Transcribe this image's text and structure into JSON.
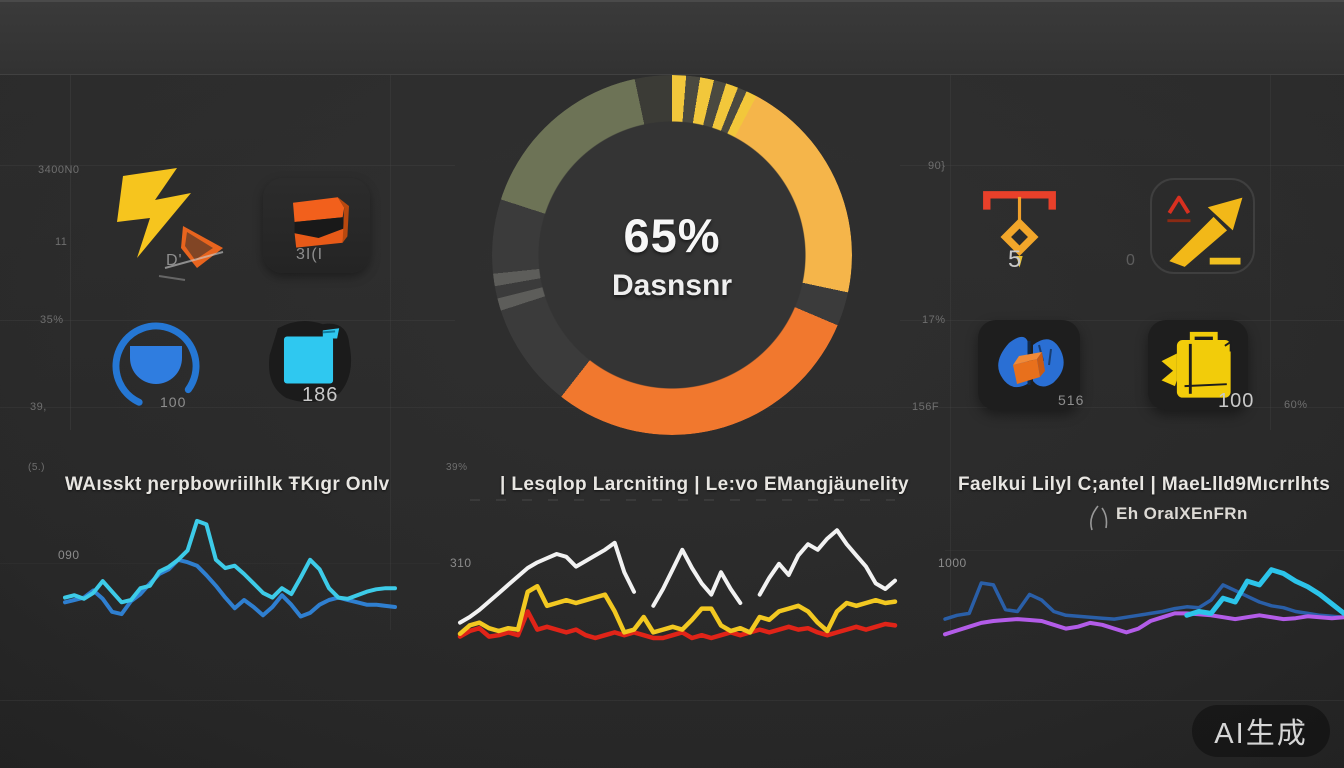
{
  "watermark": {
    "label": "AI生成"
  },
  "donut": {
    "percent": "65%",
    "label": "Dasnsnr",
    "start_deg": -72,
    "segments": [
      [
        "#6d7356",
        0,
        60
      ],
      [
        "#3b3b36",
        60,
        72
      ],
      [
        "#f2c73b",
        72,
        76.5
      ],
      [
        "#4a4940",
        76.5,
        81
      ],
      [
        "#f2c73b",
        81,
        85.5
      ],
      [
        "#4a4940",
        85.5,
        89.5
      ],
      [
        "#f2c73b",
        89.5,
        93.5
      ],
      [
        "#4a4940",
        93.5,
        96.5
      ],
      [
        "#f2c73b",
        96.5,
        100
      ],
      [
        "#f5b54a",
        100,
        174
      ],
      [
        "#3b3b3b",
        174,
        185
      ],
      [
        "#f1782e",
        185,
        290
      ],
      [
        "#3b3b3b",
        290,
        324
      ],
      [
        "#5d5d5a",
        324,
        328
      ],
      [
        "#3b3b3b",
        328,
        332
      ],
      [
        "#5d5d5a",
        332,
        336
      ],
      [
        "#3b3b3b",
        336,
        360
      ]
    ]
  },
  "axis": {
    "left": [
      "3400N0",
      "11",
      "35%",
      "39,"
    ],
    "right": [
      "90}",
      "17%",
      "156F",
      "60%"
    ]
  },
  "tiles": {
    "left": [
      {
        "icon": "lightning-icon",
        "caption": "D'"
      },
      {
        "icon": "layers-box-icon",
        "caption": "3I(I"
      },
      {
        "icon": "arc-bowl-icon",
        "caption": "100"
      },
      {
        "icon": "cyan-cube-icon",
        "caption": "186"
      }
    ],
    "right": [
      {
        "icon": "pen-tool-icon",
        "caption": "5"
      },
      {
        "icon": "trend-arrow-icon",
        "caption": "0"
      },
      {
        "icon": "brain-cube-icon",
        "caption": "516"
      },
      {
        "icon": "yellow-bag-icon",
        "caption": "100"
      }
    ]
  },
  "panels": [
    {
      "title": "WAısskt ɲerpbowriilhlk ŦKıgr Onlv",
      "corner": "(5.)",
      "axis": "090"
    },
    {
      "title": "| Lesqlop Larcniting | Le:vo EMangjäunelity",
      "corner": "39%",
      "axis": "310"
    },
    {
      "title": "Faelkui Lilyl C;antel | MaeĿlld9Mıcrrlhts",
      "subtitle": "Eh OralXEnFRn",
      "axis": "1000"
    }
  ],
  "chart_data": [
    {
      "type": "donut",
      "title": "Dasnsnr",
      "center_value": "65%",
      "legend_position": "none",
      "slices": [
        {
          "label": "amber",
          "color": "#f5b54a",
          "sweep_deg": 74
        },
        {
          "label": "orange",
          "color": "#f1782e",
          "sweep_deg": 105
        },
        {
          "label": "olive",
          "color": "#6d7356",
          "sweep_deg": 60
        },
        {
          "label": "yellow-striped",
          "color": "#f2c73b",
          "sweep_deg": 28
        },
        {
          "label": "dark-remainder",
          "color": "#3b3b3b",
          "sweep_deg": 93
        }
      ]
    },
    {
      "type": "line",
      "title": "WAısskt ɲerpbowriilhlk ŦKıgr Onlv",
      "xlabel": "",
      "ylabel": "",
      "ylim": [
        0,
        100
      ],
      "grid": false,
      "series": [
        {
          "name": "blue",
          "color": "#2f7fd0",
          "width": 4,
          "values": [
            26,
            28,
            30,
            36,
            29,
            18,
            16,
            27,
            33,
            42,
            50,
            54,
            62,
            60,
            57,
            49,
            40,
            30,
            21,
            28,
            22,
            15,
            22,
            32,
            24,
            14,
            17,
            24,
            28,
            30,
            28,
            26,
            24,
            24,
            23,
            22
          ]
        },
        {
          "name": "cyan",
          "color": "#3dcbe8",
          "width": 4,
          "values": [
            30,
            32,
            29,
            34,
            44,
            35,
            26,
            28,
            38,
            40,
            52,
            56,
            62,
            70,
            95,
            92,
            62,
            55,
            57,
            50,
            42,
            34,
            30,
            38,
            33,
            47,
            62,
            54,
            38,
            30,
            29,
            32,
            35,
            37,
            38,
            38
          ]
        }
      ]
    },
    {
      "type": "line",
      "title": "Lesqlop Larcniting | Le:vo EMangjäunelity",
      "xlabel": "",
      "ylabel": "",
      "ylim": [
        0,
        100
      ],
      "grid": false,
      "series": [
        {
          "name": "red",
          "color": "#e02418",
          "width": 4.5,
          "values": [
            6,
            10,
            12,
            6,
            7,
            9,
            7,
            24,
            11,
            13,
            11,
            9,
            11,
            7,
            5,
            7,
            9,
            7,
            9,
            7,
            5,
            5,
            7,
            9,
            5,
            7,
            5,
            7,
            9,
            7,
            9,
            11,
            9,
            11,
            13,
            11,
            12,
            9,
            7,
            9,
            11,
            13,
            11,
            13,
            15,
            14
          ]
        },
        {
          "name": "yellow",
          "color": "#f2c821",
          "width": 4.5,
          "values": [
            8,
            14,
            16,
            12,
            10,
            12,
            11,
            38,
            42,
            28,
            30,
            32,
            30,
            32,
            34,
            36,
            24,
            9,
            11,
            20,
            9,
            11,
            13,
            11,
            18,
            26,
            26,
            14,
            10,
            12,
            9,
            20,
            18,
            24,
            26,
            28,
            24,
            16,
            10,
            24,
            30,
            28,
            30,
            32,
            30,
            31
          ]
        },
        {
          "name": "white",
          "color": "#f2f2f2",
          "width": 4,
          "values": [
            16,
            20,
            25,
            31,
            37,
            43,
            49,
            55,
            59,
            62,
            65,
            63,
            56,
            60,
            64,
            68,
            73,
            52,
            38,
            null,
            28,
            40,
            54,
            68,
            55,
            44,
            36,
            52,
            40,
            30,
            null,
            36,
            48,
            58,
            50,
            64,
            72,
            68,
            76,
            82,
            72,
            64,
            56,
            44,
            40,
            46
          ]
        }
      ]
    },
    {
      "type": "line",
      "title": "Faelkui Lilyl C;antel | MaeĿlld9Mıcrrlhts",
      "xlabel": "",
      "ylabel": "",
      "ylim": [
        0,
        100
      ],
      "grid": false,
      "series": [
        {
          "name": "navy",
          "color": "#2a5fa8",
          "width": 3.5,
          "values": [
            22,
            26,
            28,
            60,
            58,
            32,
            30,
            48,
            42,
            30,
            26,
            25,
            24,
            23,
            22,
            24,
            26,
            28,
            30,
            33,
            35,
            34,
            42,
            58,
            52,
            46,
            40,
            36,
            34,
            30,
            28,
            26,
            25,
            24
          ]
        },
        {
          "name": "purple",
          "color": "#b35ce8",
          "width": 4,
          "values": [
            6,
            10,
            14,
            18,
            20,
            21,
            22,
            21,
            20,
            16,
            12,
            14,
            18,
            16,
            12,
            8,
            12,
            20,
            24,
            28,
            28,
            27,
            26,
            24,
            22,
            24,
            26,
            24,
            22,
            23,
            25,
            24,
            23,
            24
          ]
        },
        {
          "name": "cyan",
          "color": "#2cc4ea",
          "width": 5,
          "values": [
            null,
            null,
            null,
            null,
            null,
            null,
            null,
            null,
            null,
            null,
            null,
            null,
            null,
            null,
            null,
            null,
            null,
            null,
            null,
            null,
            26,
            30,
            28,
            44,
            40,
            62,
            58,
            74,
            70,
            62,
            56,
            48,
            38,
            28
          ]
        }
      ]
    }
  ]
}
